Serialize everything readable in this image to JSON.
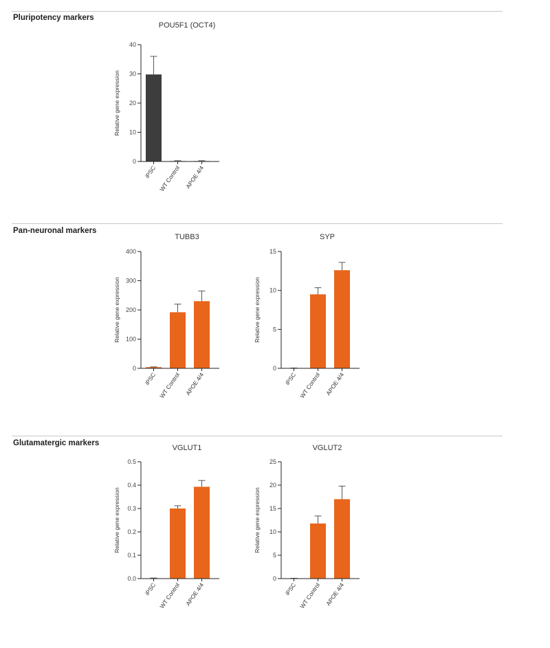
{
  "sections": [
    {
      "title": "Pluripotency markers"
    },
    {
      "title": "Pan-neuronal markers"
    },
    {
      "title": "Glutamatergic markers"
    }
  ],
  "colors": {
    "dark_bar": "#3d3d3d",
    "accent_bar": "#e8651b"
  },
  "chart_data": [
    {
      "type": "bar",
      "title": "POU5F1 (OCT4)",
      "ylabel": "Relative gene expression",
      "xlabel": "",
      "categories": [
        "iPSC",
        "WT Control",
        "APOE 4/4"
      ],
      "values": [
        29.8,
        0.15,
        0.15
      ],
      "errors": [
        6.2,
        0,
        0
      ],
      "ylim": [
        0,
        40
      ],
      "yticks": [
        0,
        10,
        20,
        30,
        40
      ],
      "ytick_labels": [
        "0",
        "10",
        "20",
        "30",
        "40"
      ],
      "bar_color": "#3d3d3d",
      "grid": false
    },
    {
      "type": "bar",
      "title": "TUBB3",
      "ylabel": "Relative gene expression",
      "xlabel": "",
      "categories": [
        "iPSC",
        "WT Control",
        "APOE 4/4"
      ],
      "values": [
        4,
        192,
        230
      ],
      "errors": [
        1,
        28,
        35
      ],
      "ylim": [
        0,
        400
      ],
      "yticks": [
        0,
        100,
        200,
        300,
        400
      ],
      "ytick_labels": [
        "0",
        "100",
        "200",
        "300",
        "400"
      ],
      "bar_color": "#e8651b",
      "grid": false
    },
    {
      "type": "bar",
      "title": "SYP",
      "ylabel": "Relative gene expression",
      "xlabel": "",
      "categories": [
        "iPSC",
        "WT Control",
        "APOE 4/4"
      ],
      "values": [
        0,
        9.5,
        12.6
      ],
      "errors": [
        0,
        0.85,
        1.0
      ],
      "ylim": [
        0,
        15
      ],
      "yticks": [
        0,
        5,
        10,
        15
      ],
      "ytick_labels": [
        "0",
        "5",
        "10",
        "15"
      ],
      "bar_color": "#e8651b",
      "grid": false
    },
    {
      "type": "bar",
      "title": "VGLUT1",
      "ylabel": "Relative gene expression",
      "xlabel": "",
      "categories": [
        "iPSC",
        "WT Control",
        "APOE 4/4"
      ],
      "values": [
        0.001,
        0.3,
        0.393
      ],
      "errors": [
        0,
        0.012,
        0.027
      ],
      "ylim": [
        0,
        0.5
      ],
      "yticks": [
        0,
        0.1,
        0.2,
        0.3,
        0.4,
        0.5
      ],
      "ytick_labels": [
        "0.0",
        "0.1",
        "0.2",
        "0.3",
        "0.4",
        "0.5"
      ],
      "bar_color": "#e8651b",
      "grid": false
    },
    {
      "type": "bar",
      "title": "VGLUT2",
      "ylabel": "Relative gene expression",
      "xlabel": "",
      "categories": [
        "iPSC",
        "WT Control",
        "APOE 4/4"
      ],
      "values": [
        0,
        11.8,
        17.0
      ],
      "errors": [
        0,
        1.6,
        2.8
      ],
      "ylim": [
        0,
        25
      ],
      "yticks": [
        0,
        5,
        10,
        15,
        20,
        25
      ],
      "ytick_labels": [
        "0",
        "5",
        "10",
        "15",
        "20",
        "25"
      ],
      "bar_color": "#e8651b",
      "grid": false
    }
  ]
}
